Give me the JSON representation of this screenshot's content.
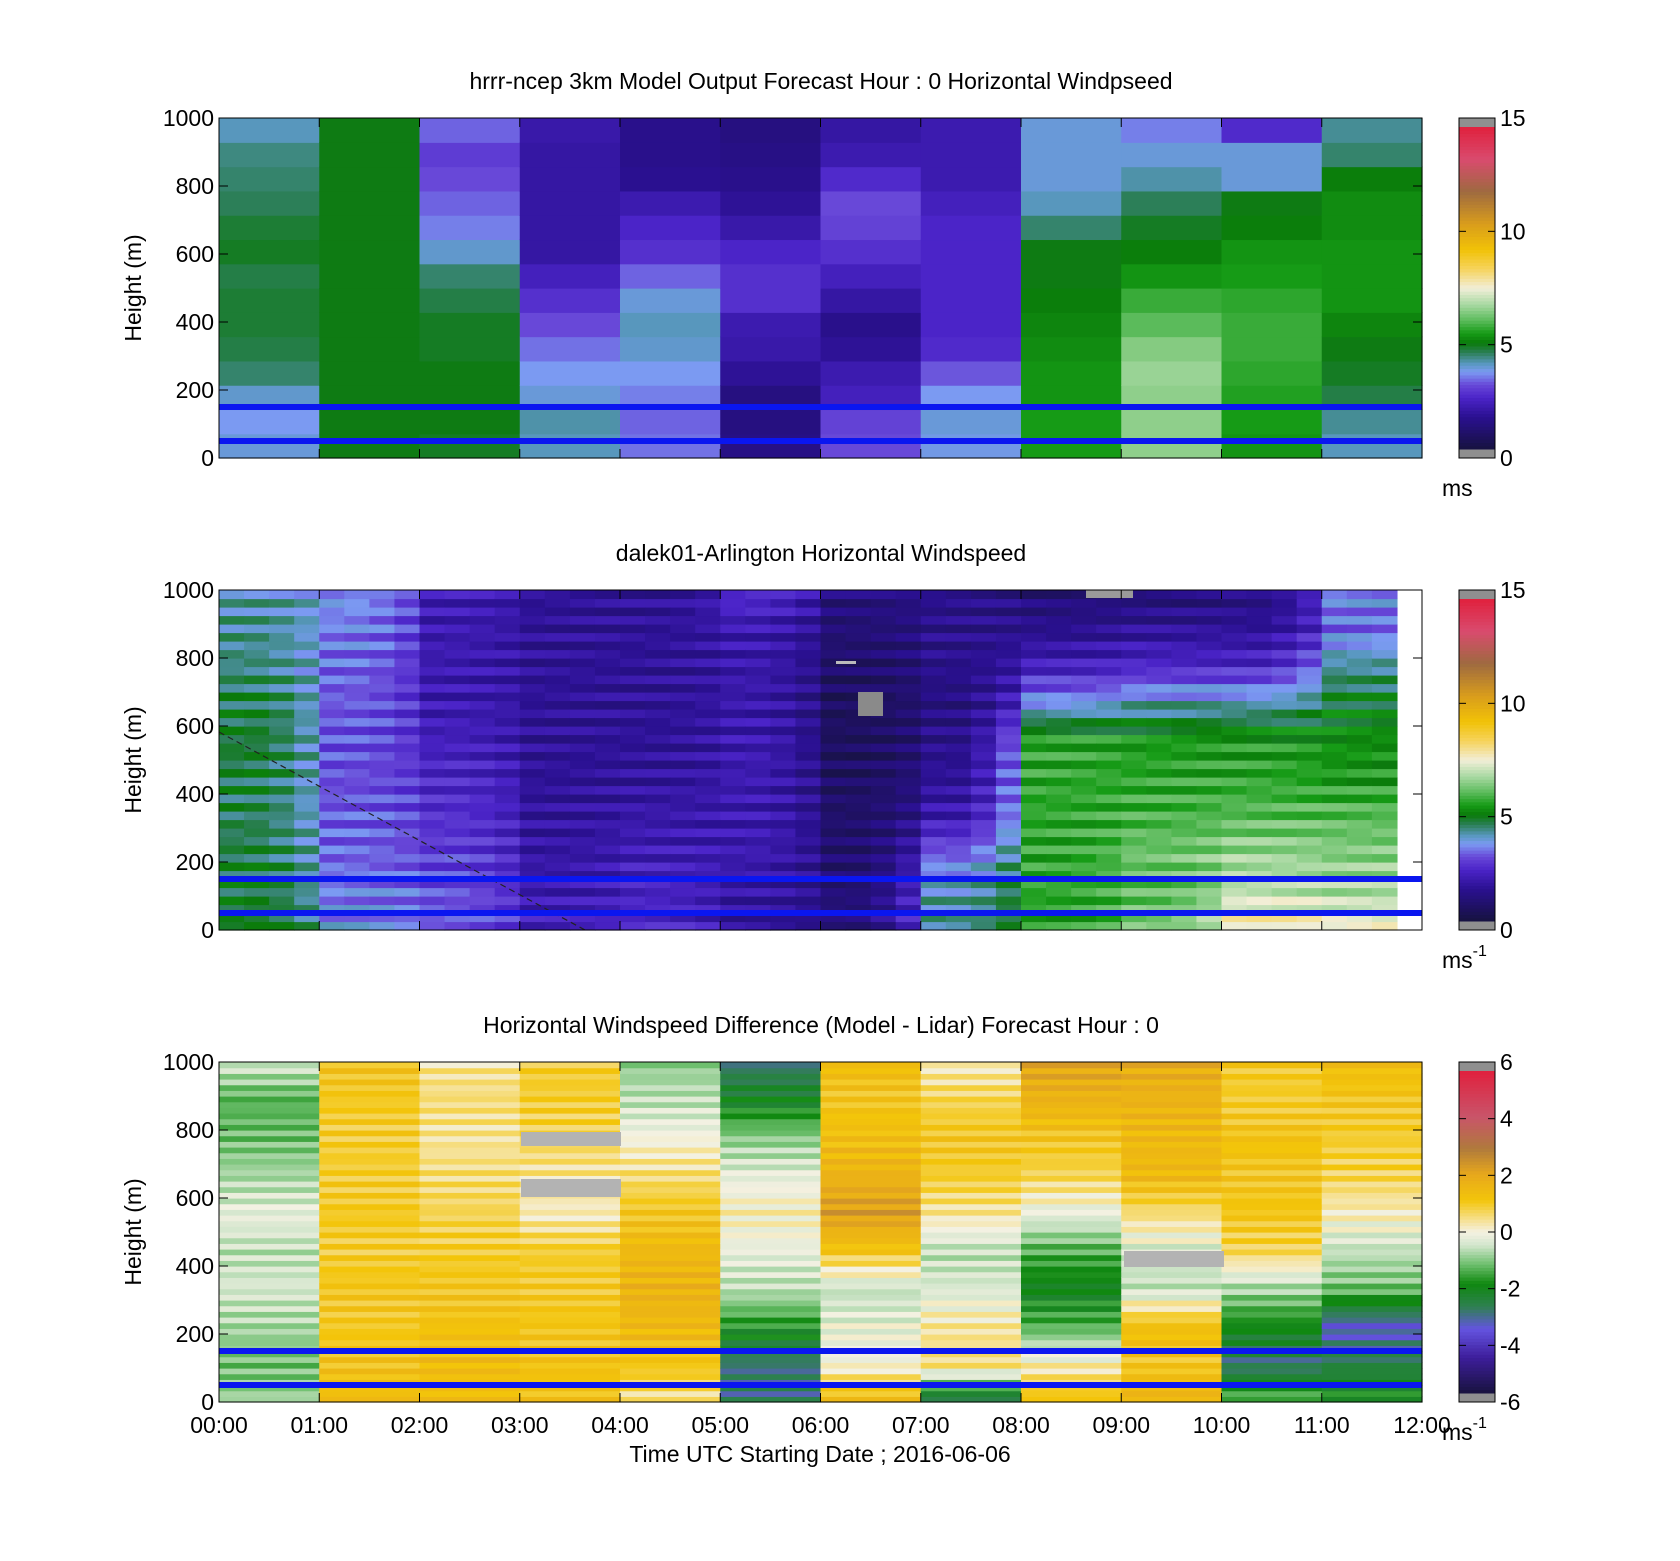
{
  "chart_data": [
    {
      "type": "heatmap",
      "title": "hrrr-ncep 3km Model Output   Forecast Hour : 0 Horizontal Windpseed",
      "xlabel": "",
      "ylabel": "Height (m)",
      "xlim": [
        0,
        12
      ],
      "ylim": [
        0,
        1000
      ],
      "y_ticks": [
        "0",
        "200",
        "400",
        "600",
        "800",
        "1000"
      ],
      "x_ticks": [],
      "colorbar": {
        "range": [
          0,
          15
        ],
        "ticks": [
          "0",
          "5",
          "10",
          "15"
        ],
        "unit": "ms"
      },
      "reference_lines_m": [
        150,
        50
      ],
      "hour_columns": [
        [
          3.8,
          3.6,
          3.9,
          4.4,
          4.6,
          4.7,
          4.7,
          4.6,
          4.8,
          4.7,
          4.5,
          4.4,
          4.3,
          4.0
        ],
        [
          4.9,
          4.9,
          4.9,
          4.9,
          4.9,
          4.9,
          4.9,
          4.9,
          4.9,
          4.9,
          4.9,
          4.9,
          4.9,
          4.9
        ],
        [
          4.8,
          4.9,
          4.9,
          4.9,
          4.8,
          4.8,
          4.6,
          4.4,
          3.9,
          3.4,
          3.2,
          3.0,
          2.8,
          3.2
        ],
        [
          4.0,
          4.1,
          3.8,
          3.6,
          3.3,
          3.0,
          2.6,
          2.2,
          1.8,
          1.8,
          1.8,
          1.8,
          1.8,
          1.9
        ],
        [
          3.3,
          3.2,
          3.4,
          3.6,
          3.9,
          4.0,
          3.8,
          3.2,
          2.6,
          2.4,
          2.0,
          1.5,
          1.4,
          1.4
        ],
        [
          1.3,
          1.2,
          1.2,
          1.6,
          1.9,
          2.0,
          2.6,
          2.6,
          2.4,
          1.9,
          1.6,
          1.4,
          1.3,
          1.2
        ],
        [
          3.0,
          2.9,
          2.2,
          2.0,
          1.6,
          1.4,
          1.8,
          2.2,
          2.6,
          2.9,
          3.0,
          2.5,
          2.0,
          1.8
        ],
        [
          3.7,
          3.8,
          3.6,
          3.1,
          2.5,
          2.4,
          2.4,
          2.4,
          2.4,
          2.4,
          2.2,
          2.0,
          2.0,
          2.0
        ],
        [
          5.4,
          5.4,
          5.3,
          5.3,
          5.2,
          5.1,
          5.0,
          4.9,
          4.9,
          4.4,
          4.0,
          3.8,
          3.8,
          3.8
        ],
        [
          6.5,
          6.5,
          6.5,
          6.6,
          6.4,
          6.0,
          5.7,
          5.3,
          5.0,
          4.8,
          4.5,
          4.1,
          3.8,
          3.4
        ],
        [
          5.3,
          5.4,
          5.5,
          5.6,
          5.7,
          5.7,
          5.6,
          5.4,
          5.3,
          5.0,
          4.9,
          3.8,
          3.8,
          2.5
        ],
        [
          4.0,
          4.2,
          4.6,
          4.8,
          4.9,
          5.1,
          5.3,
          5.3,
          5.3,
          5.2,
          5.2,
          5.0,
          4.4,
          4.2
        ]
      ]
    },
    {
      "type": "heatmap",
      "title": "dalek01-Arlington  Horizontal Windspeed",
      "xlabel": "",
      "ylabel": "Height (m)",
      "xlim": [
        0,
        12
      ],
      "ylim": [
        0,
        1000
      ],
      "y_ticks": [
        "0",
        "200",
        "400",
        "600",
        "800",
        "1000"
      ],
      "x_ticks": [],
      "colorbar": {
        "range": [
          0,
          15
        ],
        "ticks": [
          "0",
          "5",
          "10",
          "15"
        ],
        "unit": "ms",
        "unit_exponent": "-1"
      },
      "reference_lines_m": [
        150,
        50
      ],
      "hour_profiles": [
        [
          4.8,
          4.7,
          4.6,
          4.5,
          4.6,
          4.7,
          4.6,
          4.3,
          4.2,
          4.0
        ],
        [
          3.6,
          3.4,
          3.2,
          3.1,
          3.0,
          3.0,
          3.1,
          3.2,
          3.4,
          3.6
        ],
        [
          3.2,
          3.0,
          2.8,
          2.6,
          2.4,
          2.2,
          2.0,
          2.0,
          2.0,
          2.1
        ],
        [
          2.2,
          2.0,
          1.8,
          1.7,
          1.6,
          1.6,
          1.6,
          1.6,
          1.6,
          1.6
        ],
        [
          2.4,
          2.3,
          2.1,
          1.9,
          1.7,
          1.6,
          1.6,
          1.6,
          1.6,
          1.6
        ],
        [
          1.6,
          1.8,
          2.0,
          2.0,
          2.0,
          2.0,
          1.9,
          1.9,
          2.0,
          2.6
        ],
        [
          1.2,
          1.0,
          0.9,
          0.8,
          0.7,
          0.6,
          0.6,
          0.8,
          1.0,
          1.2
        ],
        [
          4.2,
          4.0,
          3.2,
          2.0,
          1.6,
          1.4,
          1.2,
          1.4,
          1.4,
          1.4
        ],
        [
          5.4,
          5.6,
          5.6,
          5.6,
          5.6,
          5.6,
          3.6,
          2.2,
          1.4,
          1.0
        ],
        [
          6.4,
          6.0,
          6.2,
          5.8,
          5.6,
          5.4,
          4.0,
          2.4,
          1.6,
          1.0
        ],
        [
          8.0,
          7.0,
          6.6,
          6.0,
          5.6,
          5.4,
          4.0,
          2.4,
          1.6,
          1.2
        ],
        [
          7.6,
          6.8,
          6.4,
          6.0,
          5.4,
          5.2,
          4.8,
          4.2,
          3.2,
          3.6
        ]
      ]
    },
    {
      "type": "heatmap",
      "title": "Horizontal Windspeed Difference (Model - Lidar) Forecast Hour : 0",
      "xlabel": "Time UTC  Starting Date ; 2016-06-06",
      "ylabel": "Height (m)",
      "xlim": [
        0,
        12
      ],
      "ylim": [
        0,
        1000
      ],
      "y_ticks": [
        "0",
        "200",
        "400",
        "600",
        "800",
        "1000"
      ],
      "x_ticks": [
        "00:00",
        "01:00",
        "02:00",
        "03:00",
        "04:00",
        "05:00",
        "06:00",
        "07:00",
        "08:00",
        "09:00",
        "10:00",
        "11:00",
        "12:00"
      ],
      "colorbar": {
        "range": [
          -6,
          6
        ],
        "ticks": [
          "-6",
          "-4",
          "-2",
          "0",
          "2",
          "4",
          "6"
        ],
        "unit": "ms",
        "unit_exponent": "-1"
      },
      "reference_lines_m": [
        150,
        50
      ],
      "hour_profiles": [
        [
          -0.8,
          -1.2,
          -0.8,
          -0.4,
          -0.6,
          -0.2,
          -0.8,
          -1.2,
          -1.4,
          -0.4
        ],
        [
          1.5,
          1.3,
          1.1,
          1.2,
          1.0,
          1.1,
          1.0,
          1.0,
          1.1,
          1.3
        ],
        [
          1.4,
          1.5,
          1.3,
          1.2,
          1.0,
          0.8,
          0.6,
          0.4,
          0.6,
          0.4
        ],
        [
          1.3,
          1.3,
          1.2,
          1.1,
          1.0,
          0.2,
          0.4,
          0.8,
          1.0,
          1.0
        ],
        [
          0.4,
          1.2,
          1.6,
          1.8,
          1.6,
          1.2,
          0.6,
          0.0,
          -0.6,
          -1.0
        ],
        [
          -3.0,
          -3.0,
          -1.8,
          -0.6,
          -0.2,
          0.2,
          -0.2,
          -1.0,
          -2.2,
          -3.0
        ],
        [
          1.6,
          0.0,
          -0.2,
          -0.6,
          1.2,
          2.4,
          1.8,
          1.4,
          1.2,
          1.5
        ],
        [
          -3.0,
          0.6,
          0.4,
          -0.4,
          -0.6,
          0.4,
          1.0,
          1.2,
          0.8,
          0.2
        ],
        [
          1.4,
          0.2,
          -1.4,
          -2.2,
          -1.4,
          -0.2,
          0.8,
          1.2,
          1.8,
          2.2
        ],
        [
          1.8,
          1.2,
          1.4,
          -0.6,
          -0.4,
          0.6,
          1.6,
          1.6,
          1.8,
          2.0
        ],
        [
          -1.2,
          -3.0,
          -2.0,
          -0.8,
          0.8,
          1.2,
          1.2,
          1.3,
          1.0,
          1.1
        ],
        [
          -1.8,
          -2.6,
          -3.6,
          -1.2,
          -0.6,
          0.2,
          0.8,
          1.0,
          1.2,
          1.4
        ]
      ]
    }
  ]
}
